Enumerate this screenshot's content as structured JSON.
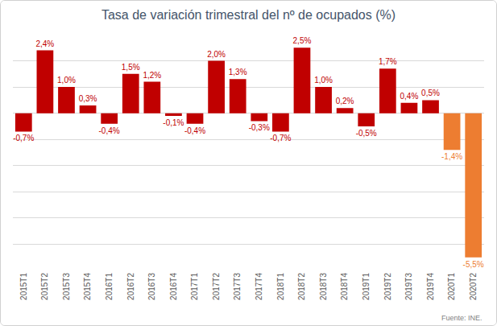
{
  "chart_data": {
    "type": "bar",
    "title": "Tasa de variación trimestral del nº de ocupados (%)",
    "annotation": "Fuente: INE.",
    "categories": [
      "2015T1",
      "2015T2",
      "2015T3",
      "2015T4",
      "2016T1",
      "2016T2",
      "2016T3",
      "2016T4",
      "2017T1",
      "2017T2",
      "2017T3",
      "2017T4",
      "2018T1",
      "2018T2",
      "2018T3",
      "2018T4",
      "2019T1",
      "2019T2",
      "2019T3",
      "2019T4",
      "2020T1",
      "2020T2"
    ],
    "values": [
      -0.7,
      2.4,
      1.0,
      0.3,
      -0.4,
      1.5,
      1.2,
      -0.1,
      -0.4,
      2.0,
      1.3,
      -0.3,
      -0.7,
      2.5,
      1.0,
      0.2,
      -0.5,
      1.7,
      0.4,
      0.5,
      -1.4,
      -5.5
    ],
    "value_labels": [
      "-0,7%",
      "2,4%",
      "1,0%",
      "0,3%",
      "-0,4%",
      "1,5%",
      "1,2%",
      "-0,1%",
      "-0,4%",
      "2,0%",
      "1,3%",
      "-0,3%",
      "-0,7%",
      "2,5%",
      "1,0%",
      "0,2%",
      "-0,5%",
      "1,7%",
      "0,4%",
      "0,5%",
      "-1,4%",
      "-5,5%"
    ],
    "colors": [
      "#c00000",
      "#c00000",
      "#c00000",
      "#c00000",
      "#c00000",
      "#c00000",
      "#c00000",
      "#c00000",
      "#c00000",
      "#c00000",
      "#c00000",
      "#c00000",
      "#c00000",
      "#c00000",
      "#c00000",
      "#c00000",
      "#c00000",
      "#c00000",
      "#c00000",
      "#c00000",
      "#ed7d31",
      "#ed7d31"
    ],
    "ylim": [
      -6,
      3
    ],
    "yticks": [
      -6,
      -5,
      -4,
      -3,
      -2,
      -1,
      0,
      1,
      2,
      3
    ],
    "grid": true,
    "data_labels": true,
    "tick_labels": "x"
  }
}
